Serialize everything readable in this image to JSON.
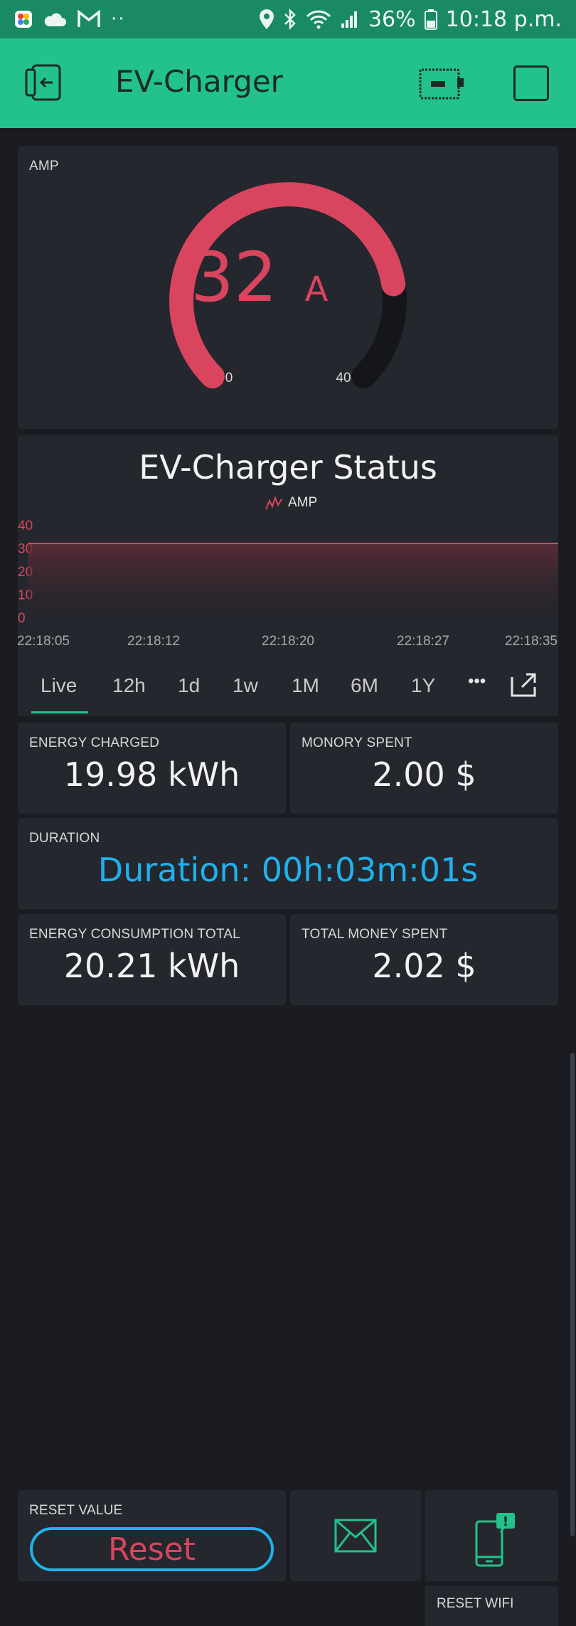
{
  "status_bar": {
    "battery": "36%",
    "time": "10:18 p.m.",
    "dots": "··",
    "icons": [
      "photos-app-icon",
      "cloud-icon",
      "gmail-icon",
      "more-dots-icon",
      "location-icon",
      "bluetooth-icon",
      "wifi-icon",
      "signal-icon",
      "battery-icon"
    ]
  },
  "app_bar": {
    "title": "EV-Charger",
    "icons": [
      "back-exit-icon",
      "device-icon",
      "square-icon"
    ],
    "background": "#23c28a"
  },
  "gauge": {
    "label": "AMP",
    "value": "32",
    "unit": "A",
    "value_num": 32,
    "min": "0",
    "max": "40",
    "min_num": 0,
    "max_num": 40,
    "color": "#d9455f"
  },
  "chart": {
    "title": "EV-Charger Status",
    "legend": "AMP",
    "tabs": [
      "Live",
      "12h",
      "1d",
      "1w",
      "1M",
      "6M",
      "1Y"
    ],
    "active_tab": "Live",
    "more_label": "•••",
    "icons": [
      "chart-line-icon",
      "more-icon",
      "export-icon"
    ]
  },
  "chart_data": {
    "type": "area",
    "title": "EV-Charger Status",
    "series": [
      {
        "name": "AMP",
        "x": [
          "22:18:05",
          "22:18:12",
          "22:18:20",
          "22:18:27",
          "22:18:35"
        ],
        "values": [
          32,
          32,
          32,
          32,
          32
        ]
      }
    ],
    "x_ticks": [
      "22:18:05",
      "22:18:12",
      "22:18:20",
      "22:18:27",
      "22:18:35"
    ],
    "y_ticks": [
      "40",
      "30",
      "20",
      "10",
      "0"
    ],
    "ylim": [
      0,
      40
    ],
    "grid": false,
    "legend_position": "top-center",
    "line_color": "#d9455f"
  },
  "tiles": {
    "energy_charged": {
      "label": "ENERGY CHARGED",
      "value": "19.98 kWh"
    },
    "money_spent": {
      "label": "MONORY SPENT",
      "value": "2.00 $"
    },
    "duration": {
      "label": "DURATION",
      "value": "Duration: 00h:03m:01s",
      "color": "#1fb2ec"
    },
    "energy_total": {
      "label": "ENERGY CONSUMPTION TOTAL",
      "value": "20.21 kWh"
    },
    "total_money": {
      "label": "TOTAL MONEY SPENT",
      "value": "2.02 $"
    }
  },
  "controls": {
    "reset": {
      "label": "RESET VALUE",
      "button": "Reset"
    },
    "email_icon": "mail-icon",
    "wifi": {
      "label": "RESET WIFI",
      "icon": "phone-alert-icon",
      "badge": "!"
    }
  }
}
